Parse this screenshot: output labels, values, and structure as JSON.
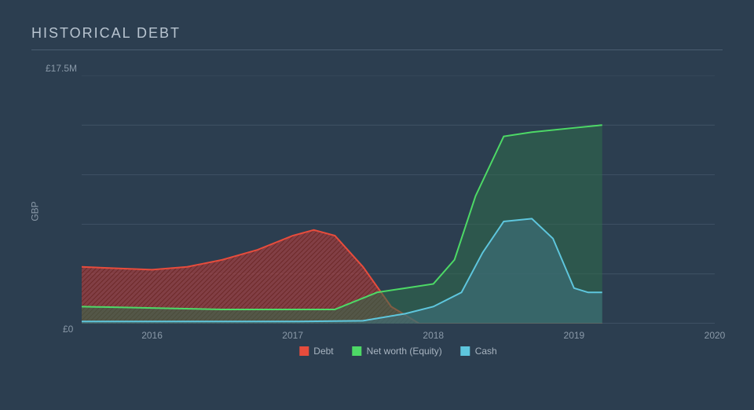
{
  "title": "HISTORICAL DEBT",
  "chart": {
    "type": "area",
    "background_color": "#2c3e50",
    "grid_color": "#4a5d70",
    "text_color": "#8a99a8",
    "title_color": "#b8c4d0",
    "title_fontsize": 18,
    "label_fontsize": 12,
    "y_axis_label": "GBP",
    "y_tick_top": "£17.5M",
    "y_tick_bottom": "£0",
    "x_ticks": [
      "2016",
      "2017",
      "2018",
      "2019",
      "2020"
    ],
    "x_domain": [
      2015.5,
      2020
    ],
    "y_domain": [
      0,
      17.5
    ],
    "series": [
      {
        "name": "Debt",
        "legend_label": "Debt",
        "color_fill": "#b13f3f",
        "color_stroke": "#e74c3c",
        "fill_opacity": 0.65,
        "stroke_width": 2,
        "hatched": true,
        "points": [
          [
            2015.5,
            4.0
          ],
          [
            2015.75,
            3.9
          ],
          [
            2016.0,
            3.8
          ],
          [
            2016.25,
            4.0
          ],
          [
            2016.5,
            4.5
          ],
          [
            2016.75,
            5.2
          ],
          [
            2017.0,
            6.2
          ],
          [
            2017.15,
            6.6
          ],
          [
            2017.3,
            6.2
          ],
          [
            2017.5,
            4.0
          ],
          [
            2017.7,
            1.2
          ],
          [
            2017.9,
            0.0
          ],
          [
            2019.2,
            0.0
          ]
        ]
      },
      {
        "name": "Net worth (Equity)",
        "legend_label": "Net worth (Equity)",
        "color_fill": "#2f6b4a",
        "color_stroke": "#4dd966",
        "fill_opacity": 0.55,
        "stroke_width": 2,
        "hatched": false,
        "points": [
          [
            2015.5,
            1.2
          ],
          [
            2016.0,
            1.1
          ],
          [
            2016.5,
            1.0
          ],
          [
            2017.0,
            1.0
          ],
          [
            2017.3,
            1.0
          ],
          [
            2017.6,
            2.2
          ],
          [
            2017.8,
            2.5
          ],
          [
            2018.0,
            2.8
          ],
          [
            2018.15,
            4.5
          ],
          [
            2018.3,
            9.0
          ],
          [
            2018.5,
            13.2
          ],
          [
            2018.7,
            13.5
          ],
          [
            2019.0,
            13.8
          ],
          [
            2019.2,
            14.0
          ]
        ]
      },
      {
        "name": "Cash",
        "legend_label": "Cash",
        "color_fill": "#3d6f7d",
        "color_stroke": "#5ec6dd",
        "fill_opacity": 0.6,
        "stroke_width": 2,
        "hatched": false,
        "points": [
          [
            2015.5,
            0.15
          ],
          [
            2016.0,
            0.15
          ],
          [
            2016.5,
            0.15
          ],
          [
            2017.0,
            0.15
          ],
          [
            2017.5,
            0.2
          ],
          [
            2017.8,
            0.7
          ],
          [
            2018.0,
            1.2
          ],
          [
            2018.2,
            2.2
          ],
          [
            2018.35,
            5.0
          ],
          [
            2018.5,
            7.2
          ],
          [
            2018.7,
            7.4
          ],
          [
            2018.85,
            6.0
          ],
          [
            2019.0,
            2.5
          ],
          [
            2019.1,
            2.2
          ],
          [
            2019.2,
            2.2
          ]
        ]
      }
    ],
    "legend": [
      {
        "label": "Debt",
        "color": "#e74c3c"
      },
      {
        "label": "Net worth (Equity)",
        "color": "#4dd966"
      },
      {
        "label": "Cash",
        "color": "#5ec6dd"
      }
    ]
  }
}
